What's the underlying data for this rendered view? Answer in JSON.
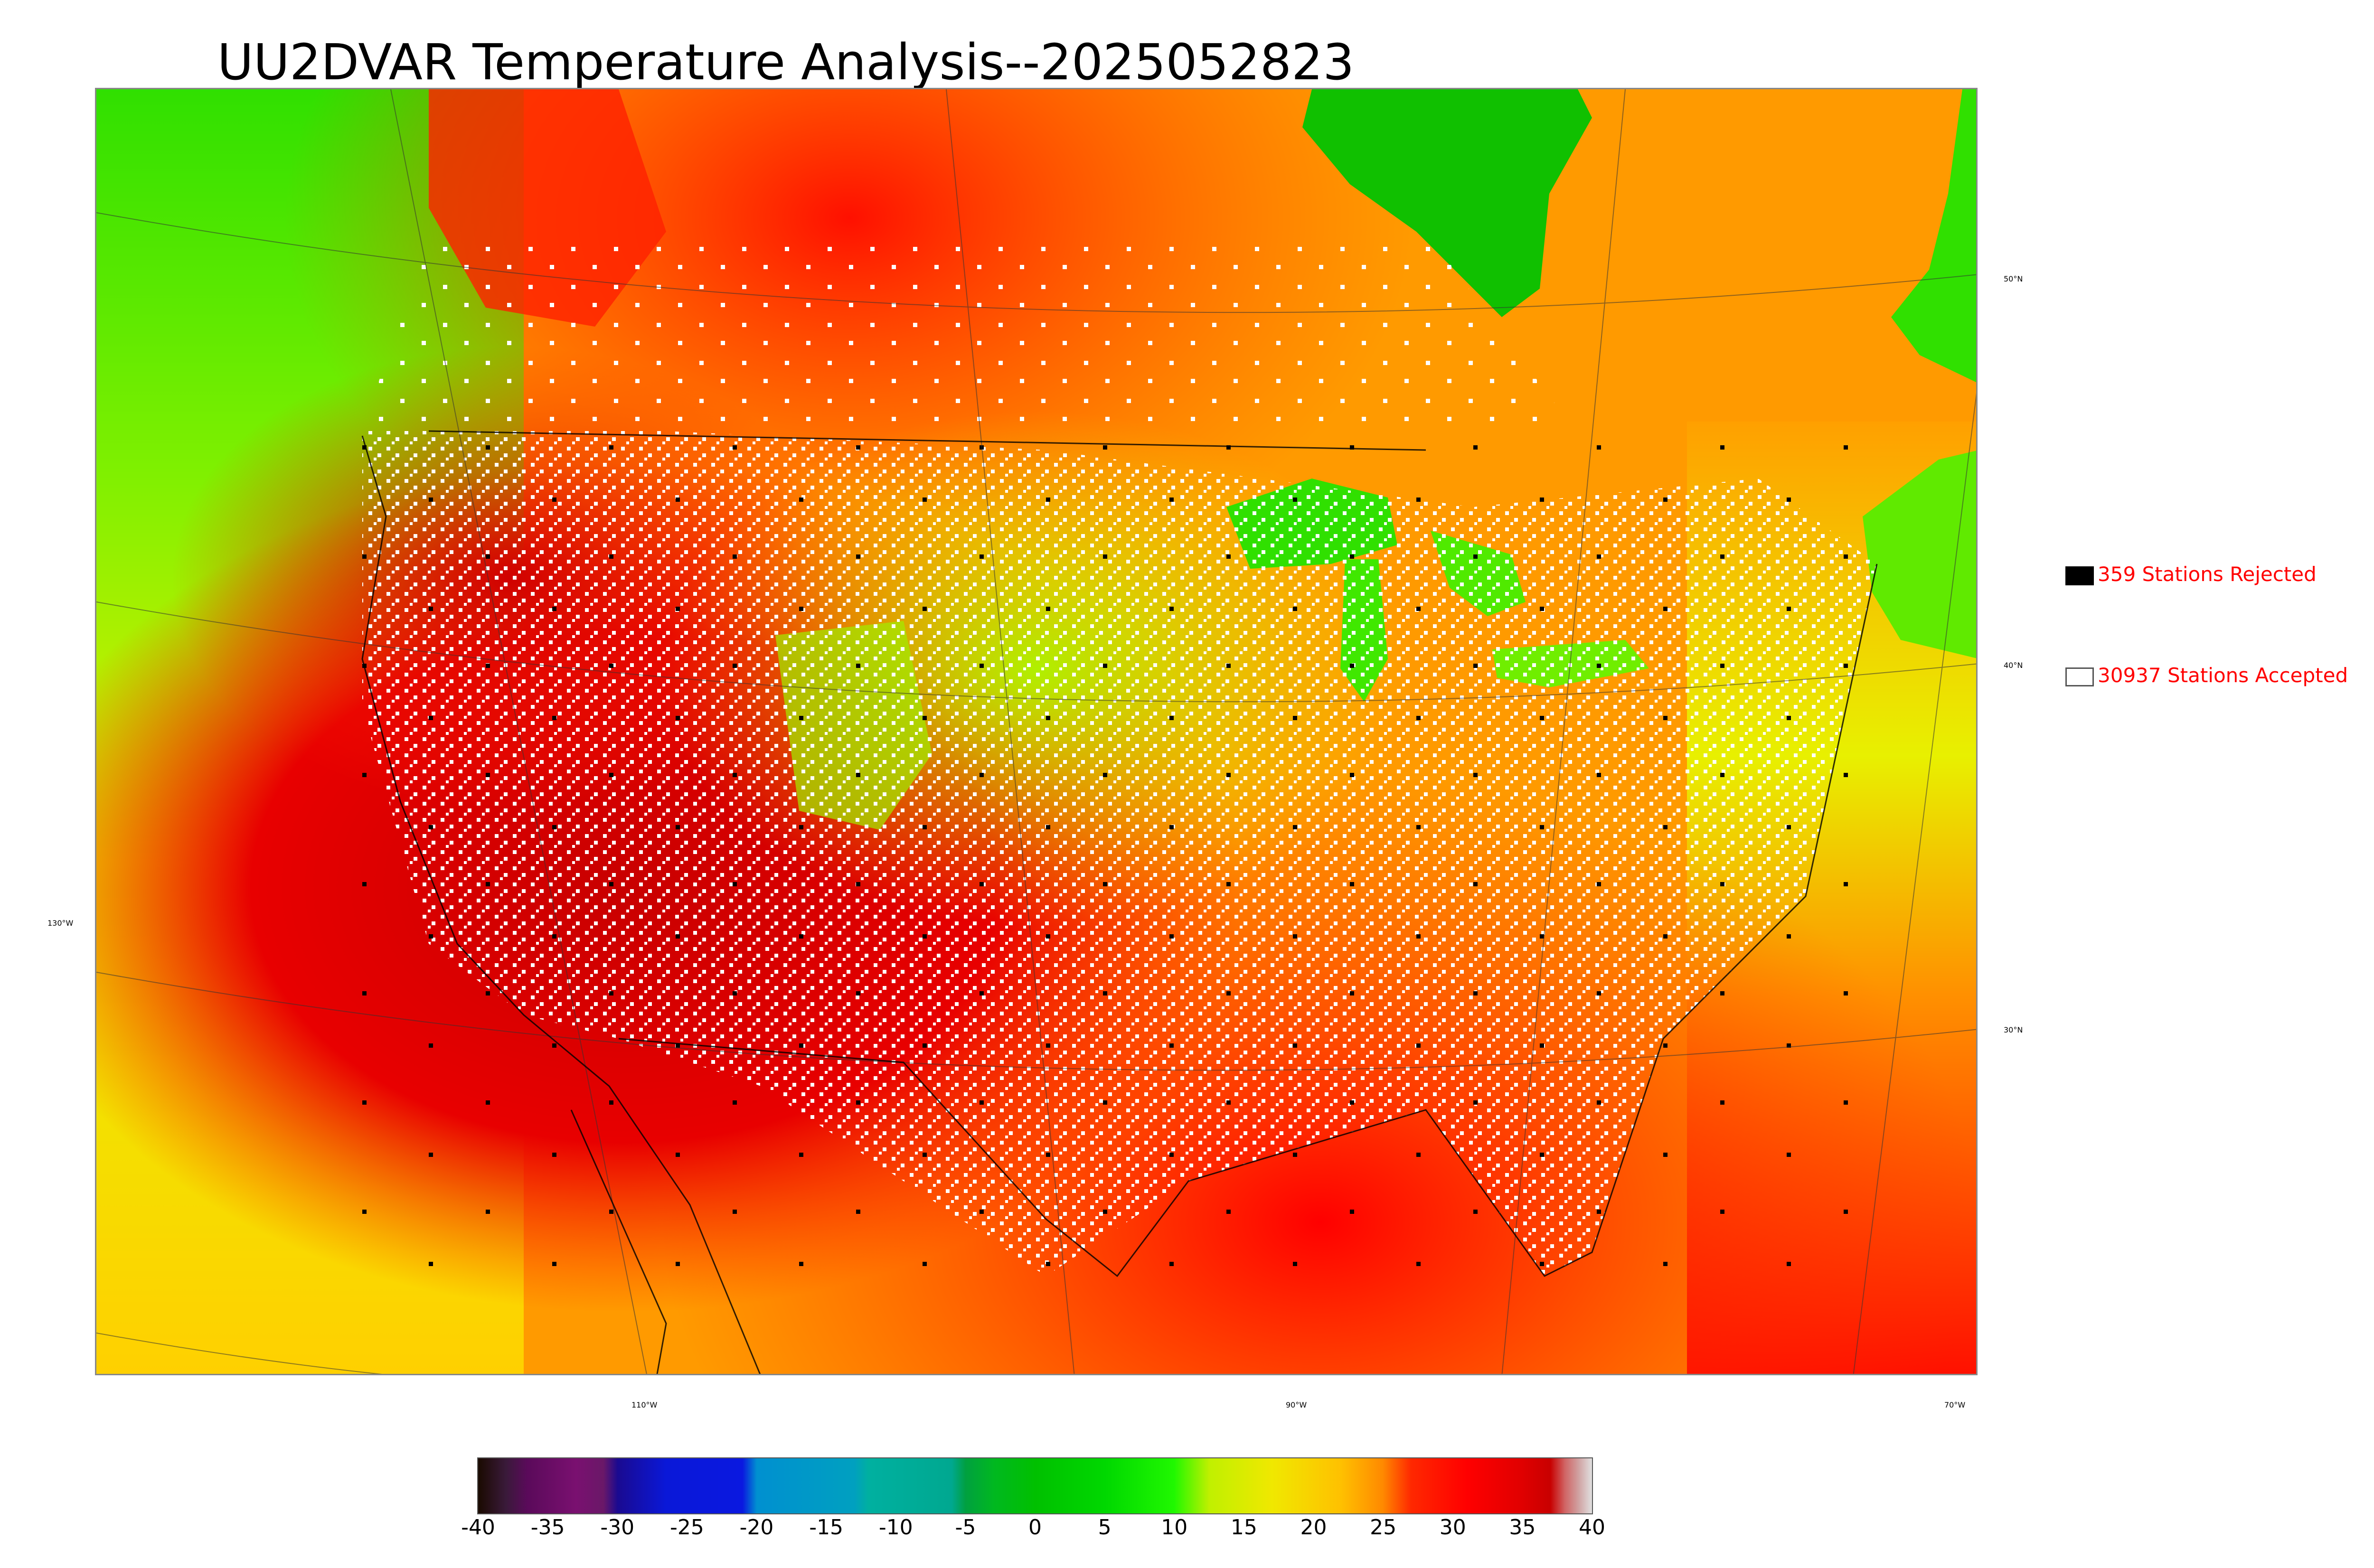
{
  "title": "UU2DVAR Temperature Analysis--2025052823",
  "map": {
    "lat_labels": [
      "50°N",
      "40°N",
      "30°N"
    ],
    "lon_labels": [
      "130°W",
      "110°W",
      "90°W",
      "70°W"
    ]
  },
  "legend": {
    "rejected": {
      "label": "359 Stations Rejected",
      "swatch": "#000000"
    },
    "accepted": {
      "label": "30937 Stations Accepted",
      "swatch": "#ffffff"
    },
    "text_color": "#ff0000"
  },
  "colorbar": {
    "min": -40,
    "max": 40,
    "ticks": [
      "-40",
      "-35",
      "-30",
      "-25",
      "-20",
      "-15",
      "-10",
      "-5",
      "0",
      "5",
      "10",
      "15",
      "20",
      "25",
      "30",
      "35",
      "40"
    ],
    "stops": [
      {
        "v": -40,
        "c": "#1a0a00"
      },
      {
        "v": -38,
        "c": "#3a1a3a"
      },
      {
        "v": -36.5,
        "c": "#5a0a5a"
      },
      {
        "v": -33,
        "c": "#7a1070"
      },
      {
        "v": -31,
        "c": "#6a1868"
      },
      {
        "v": -30,
        "c": "#1a0a90"
      },
      {
        "v": -26.5,
        "c": "#0a18d8"
      },
      {
        "v": -21,
        "c": "#0a18e0"
      },
      {
        "v": -20,
        "c": "#0090d0"
      },
      {
        "v": -13,
        "c": "#00a0c0"
      },
      {
        "v": -12,
        "c": "#00b0a0"
      },
      {
        "v": -6,
        "c": "#00a890"
      },
      {
        "v": -5,
        "c": "#00a040"
      },
      {
        "v": -3,
        "c": "#00b820"
      },
      {
        "v": 0,
        "c": "#00c000"
      },
      {
        "v": 5,
        "c": "#00d800"
      },
      {
        "v": 10,
        "c": "#20f800"
      },
      {
        "v": 12.5,
        "c": "#c0f000"
      },
      {
        "v": 17,
        "c": "#f0e800"
      },
      {
        "v": 22,
        "c": "#ffc000"
      },
      {
        "v": 25,
        "c": "#ff8800"
      },
      {
        "v": 27,
        "c": "#ff2800"
      },
      {
        "v": 31,
        "c": "#ff0000"
      },
      {
        "v": 35,
        "c": "#e00000"
      },
      {
        "v": 37,
        "c": "#c80000"
      },
      {
        "v": 38,
        "c": "#d06060"
      },
      {
        "v": 39,
        "c": "#d0a0a0"
      },
      {
        "v": 40,
        "c": "#e0e0e0"
      }
    ]
  }
}
